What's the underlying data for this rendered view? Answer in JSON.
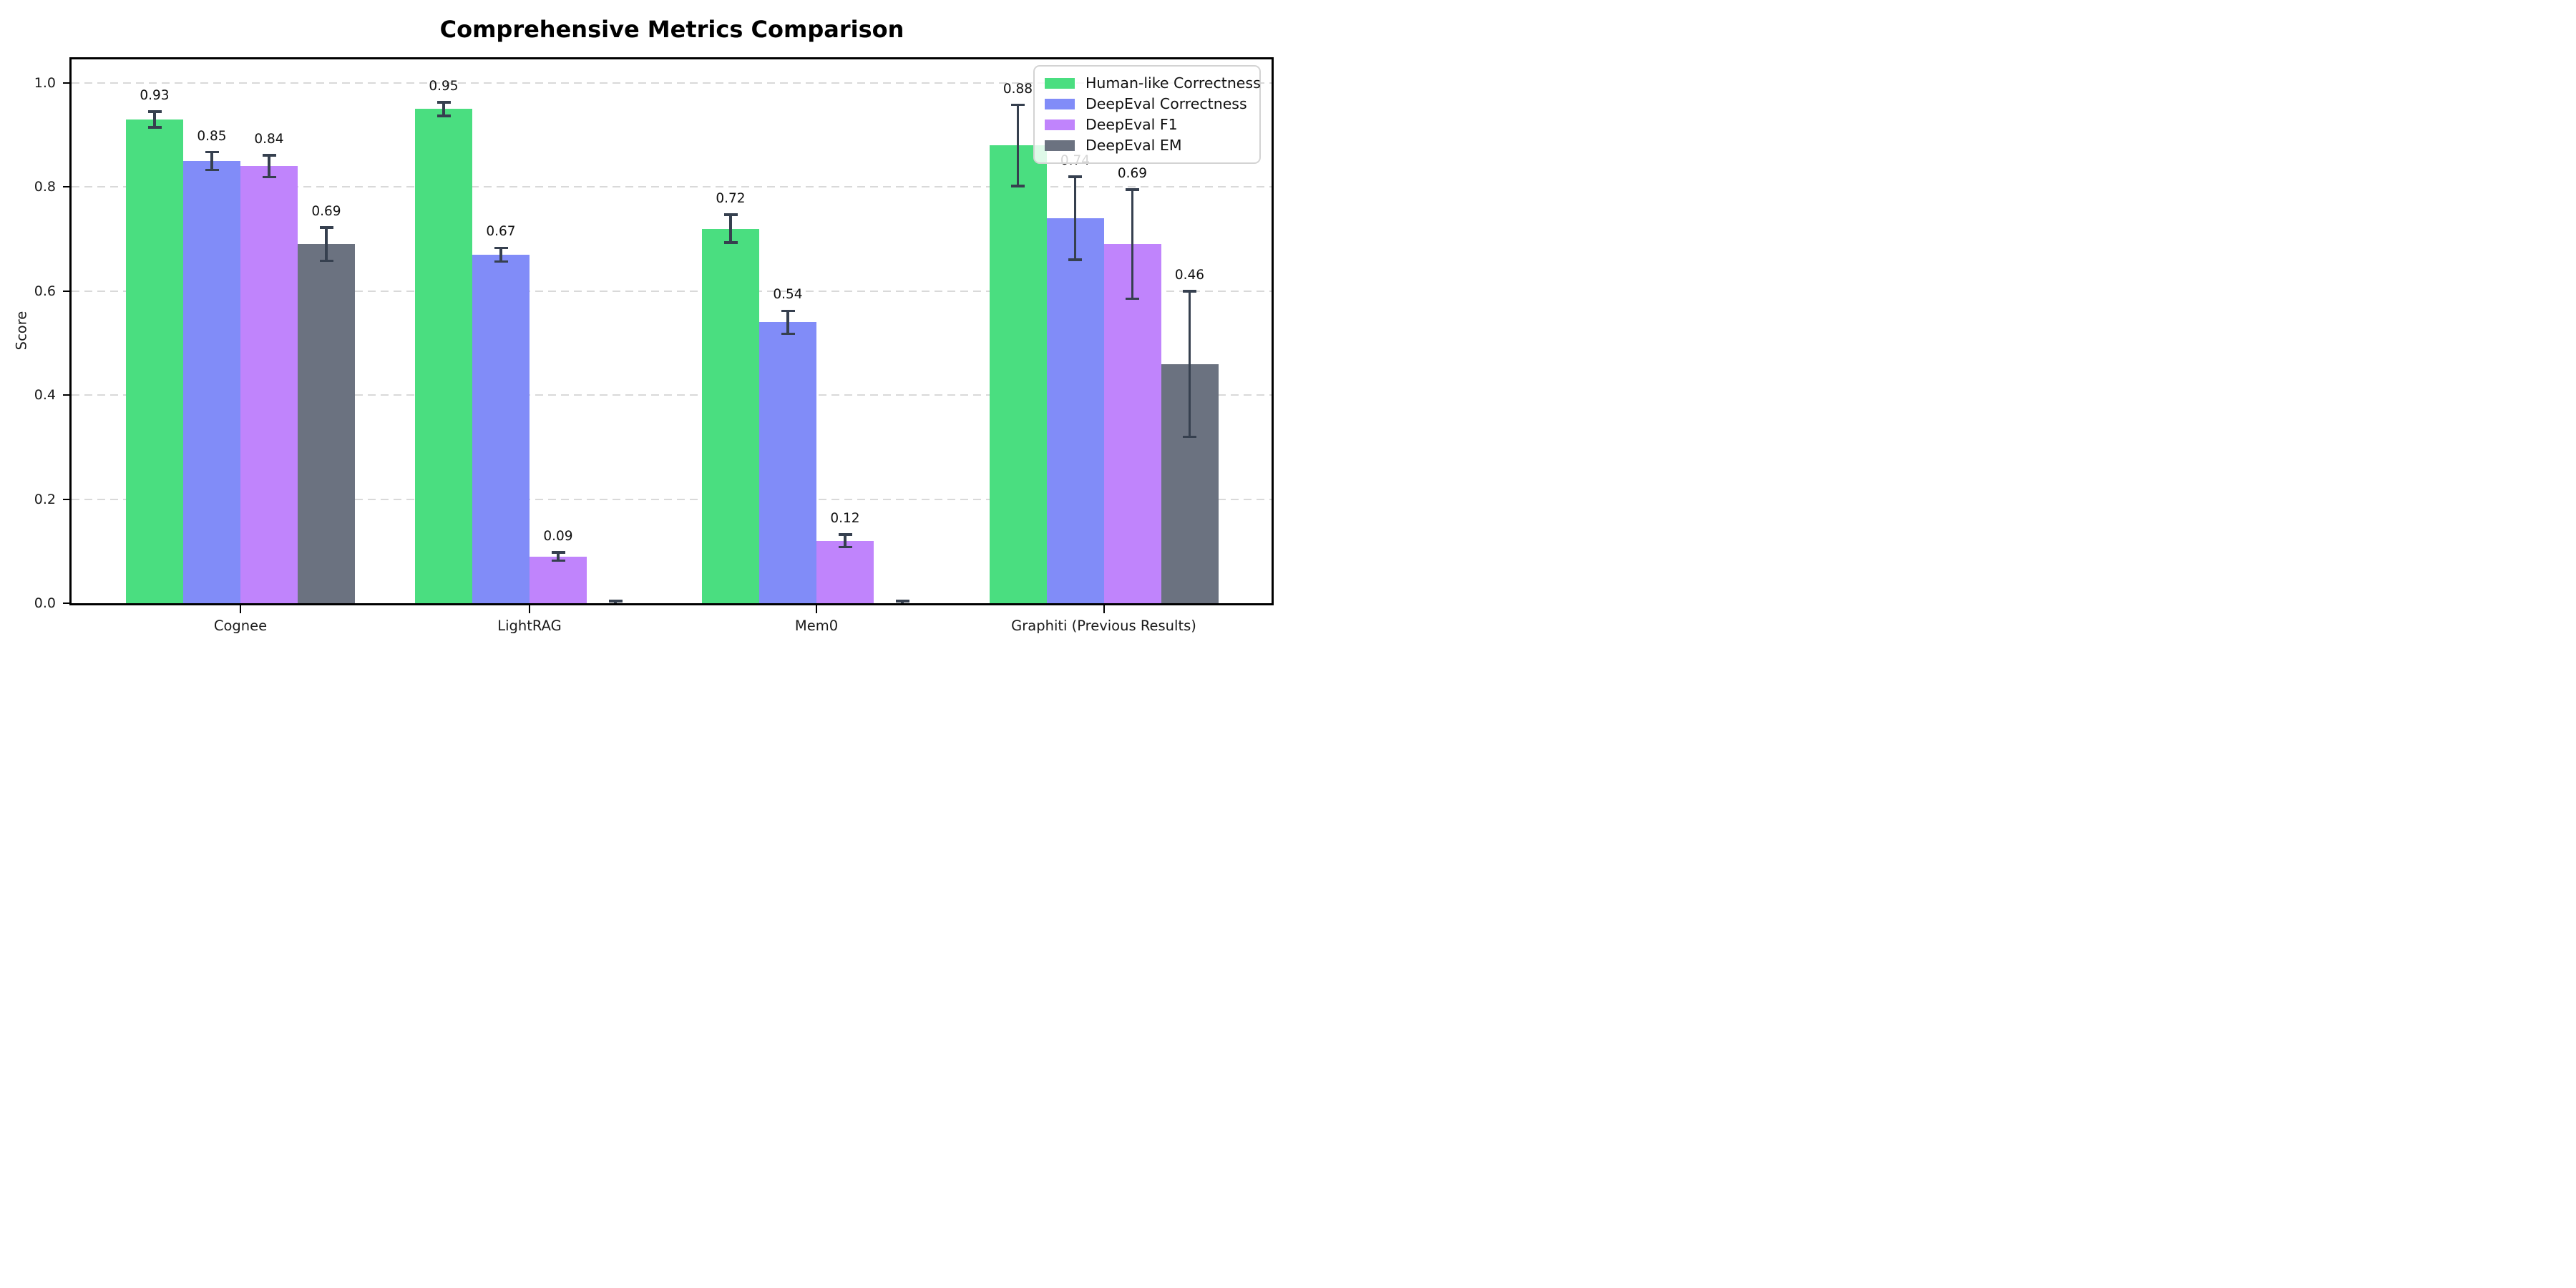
{
  "chart_data": {
    "type": "bar",
    "title": "Comprehensive Metrics Comparison",
    "xlabel": "",
    "ylabel": "Score",
    "categories": [
      "Cognee",
      "LightRAG",
      "Mem0",
      "Graphiti (Previous Results)"
    ],
    "series": [
      {
        "name": "Human-like Correctness",
        "color": "#4ade80",
        "values": [
          0.93,
          0.95,
          0.72,
          0.88
        ],
        "errors": [
          0.015,
          0.013,
          0.027,
          0.078
        ],
        "labels": [
          "0.93",
          "0.95",
          "0.72",
          "0.88"
        ]
      },
      {
        "name": "DeepEval Correctness",
        "color": "#818cf8",
        "values": [
          0.85,
          0.67,
          0.54,
          0.74
        ],
        "errors": [
          0.017,
          0.013,
          0.022,
          0.08
        ],
        "labels": [
          "0.85",
          "0.67",
          "0.54",
          "0.74"
        ]
      },
      {
        "name": "DeepEval F1",
        "color": "#c084fc",
        "values": [
          0.84,
          0.09,
          0.12,
          0.69
        ],
        "errors": [
          0.021,
          0.008,
          0.012,
          0.105
        ],
        "labels": [
          "0.84",
          "0.09",
          "0.12",
          "0.69"
        ]
      },
      {
        "name": "DeepEval EM",
        "color": "#6b7280",
        "values": [
          0.69,
          0.0,
          0.0,
          0.46
        ],
        "errors": [
          0.032,
          0.004,
          0.004,
          0.14
        ],
        "labels": [
          "0.69",
          "",
          "",
          "0.46"
        ]
      }
    ],
    "yticks": [
      "0.0",
      "0.2",
      "0.4",
      "0.6",
      "0.8",
      "1.0"
    ],
    "ytick_values": [
      0.0,
      0.2,
      0.4,
      0.6,
      0.8,
      1.0
    ],
    "ylim": [
      0,
      1.05
    ],
    "grid": "horizontal-dashed",
    "legend_position": "upper right",
    "error_bar_color": "#36404f",
    "background_color": "#ffffff"
  }
}
